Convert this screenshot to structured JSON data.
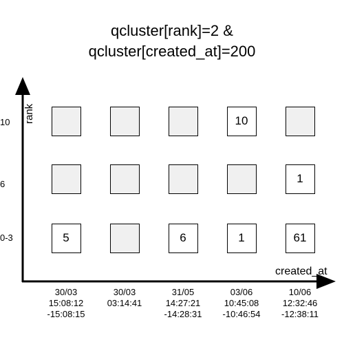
{
  "title": {
    "line1": "qcluster[rank]=2 &",
    "line2": "qcluster[created_at]=200"
  },
  "axes": {
    "x_label": "created_at",
    "y_label": "rank",
    "y_ticks": [
      "10",
      "6",
      "0-3"
    ]
  },
  "columns": [
    {
      "lines": [
        "30/03",
        "15:08:12",
        "-15:08:15"
      ]
    },
    {
      "lines": [
        "30/03",
        "03:14:41"
      ]
    },
    {
      "lines": [
        "31/05",
        "14:27:21",
        "-14:28:31"
      ]
    },
    {
      "lines": [
        "03/06",
        "10:45:08",
        "-10:46:54"
      ]
    },
    {
      "lines": [
        "10/06",
        "12:32:46",
        "-12:38:11"
      ]
    }
  ],
  "grid": [
    [
      "",
      "",
      "",
      "10",
      ""
    ],
    [
      "",
      "",
      "",
      "",
      "1"
    ],
    [
      "5",
      "",
      "6",
      "1",
      "61"
    ]
  ],
  "colors": {
    "empty_fill": "#f0f0f0",
    "filled_fill": "#ffffff",
    "stroke": "#000000"
  }
}
